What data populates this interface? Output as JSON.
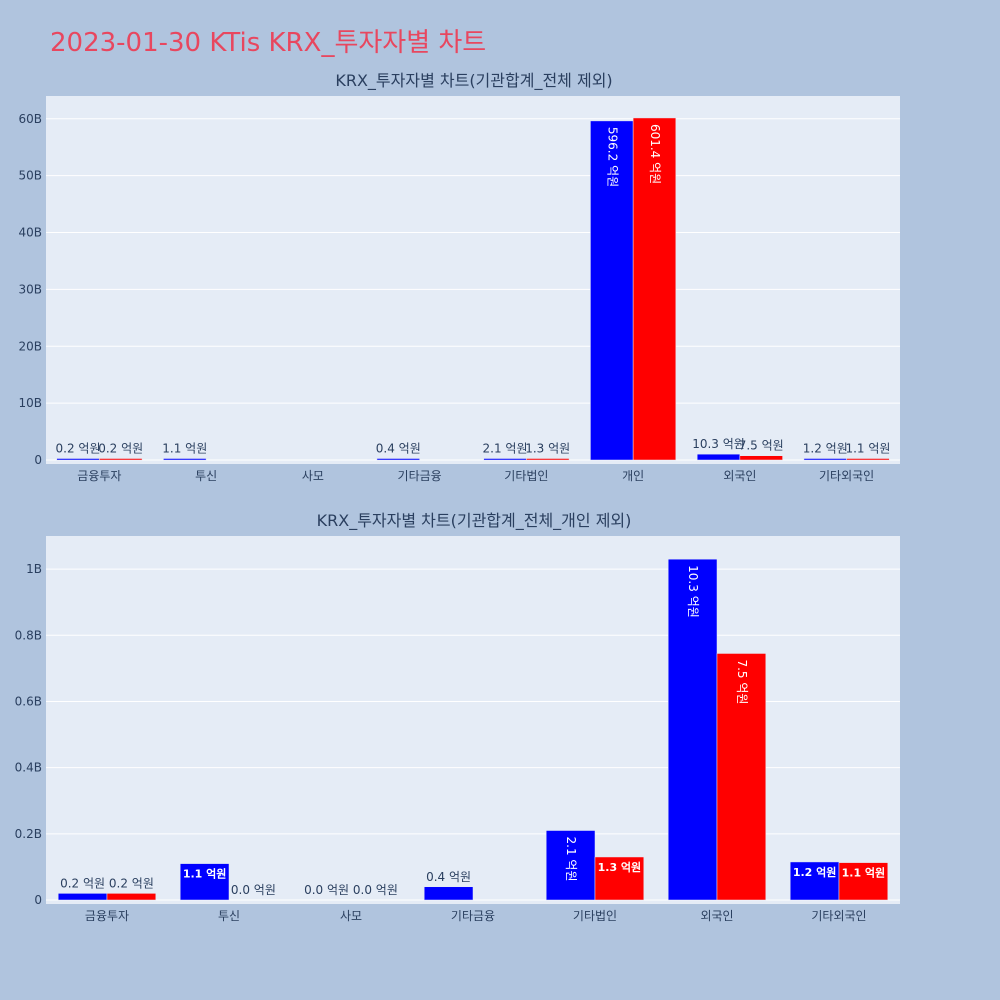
{
  "page_title": "2023-01-30 KTis KRX_투자자별 차트",
  "colors": {
    "background": "#b0c4de",
    "plot_bg": "#e5ecf6",
    "series_a": "#0000ff",
    "series_b": "#ff0000",
    "title": "#e8475f"
  },
  "chart_data": [
    {
      "type": "bar",
      "title": "KRX_투자자별 차트(기관합계_전체 제외)",
      "categories": [
        "금융투자",
        "투신",
        "사모",
        "기타금융",
        "기타법인",
        "개인",
        "외국인",
        "기타외국인"
      ],
      "y_ticks": [
        "0",
        "10B",
        "20B",
        "30B",
        "40B",
        "50B",
        "60B"
      ],
      "ylim": [
        0,
        64000000000
      ],
      "grid": true,
      "series": [
        {
          "color": "#0000ff",
          "values": [
            20000000,
            110000000,
            0,
            40000000,
            210000000,
            59620000000,
            1030000000,
            120000000
          ],
          "labels": [
            "0.2 억원",
            "1.1 억원",
            "",
            "0.4 억원",
            "2.1 억원",
            "596.2 억원",
            "10.3 억원",
            "1.2 억원"
          ]
        },
        {
          "color": "#ff0000",
          "values": [
            20000000,
            0,
            0,
            0,
            130000000,
            60140000000,
            750000000,
            110000000
          ],
          "labels": [
            "0.2 억원",
            "",
            "",
            "",
            "1.3 억원",
            "601.4 억원",
            "7.5 억원",
            "1.1 억원"
          ]
        }
      ]
    },
    {
      "type": "bar",
      "title": "KRX_투자자별 차트(기관합계_전체_개인 제외)",
      "categories": [
        "금융투자",
        "투신",
        "사모",
        "기타금융",
        "기타법인",
        "외국인",
        "기타외국인"
      ],
      "y_ticks": [
        "0",
        "0.2B",
        "0.4B",
        "0.6B",
        "0.8B",
        "1B"
      ],
      "ylim": [
        0,
        1100000000
      ],
      "grid": true,
      "series": [
        {
          "color": "#0000ff",
          "values": [
            20000000,
            110000000,
            0,
            40000000,
            210000000,
            1030000000,
            115000000
          ],
          "labels": [
            "0.2 억원",
            "1.1 억원",
            "0.0 억원",
            "0.4 억원",
            "2.1 억원",
            "10.3 억원",
            "1.2 억원"
          ]
        },
        {
          "color": "#ff0000",
          "values": [
            20000000,
            0,
            0,
            0,
            130000000,
            745000000,
            113000000
          ],
          "labels": [
            "0.2 억원",
            "0.0 억원",
            "0.0 억원",
            "",
            "1.3 억원",
            "7.5 억원",
            "1.1 억원"
          ]
        }
      ]
    }
  ]
}
